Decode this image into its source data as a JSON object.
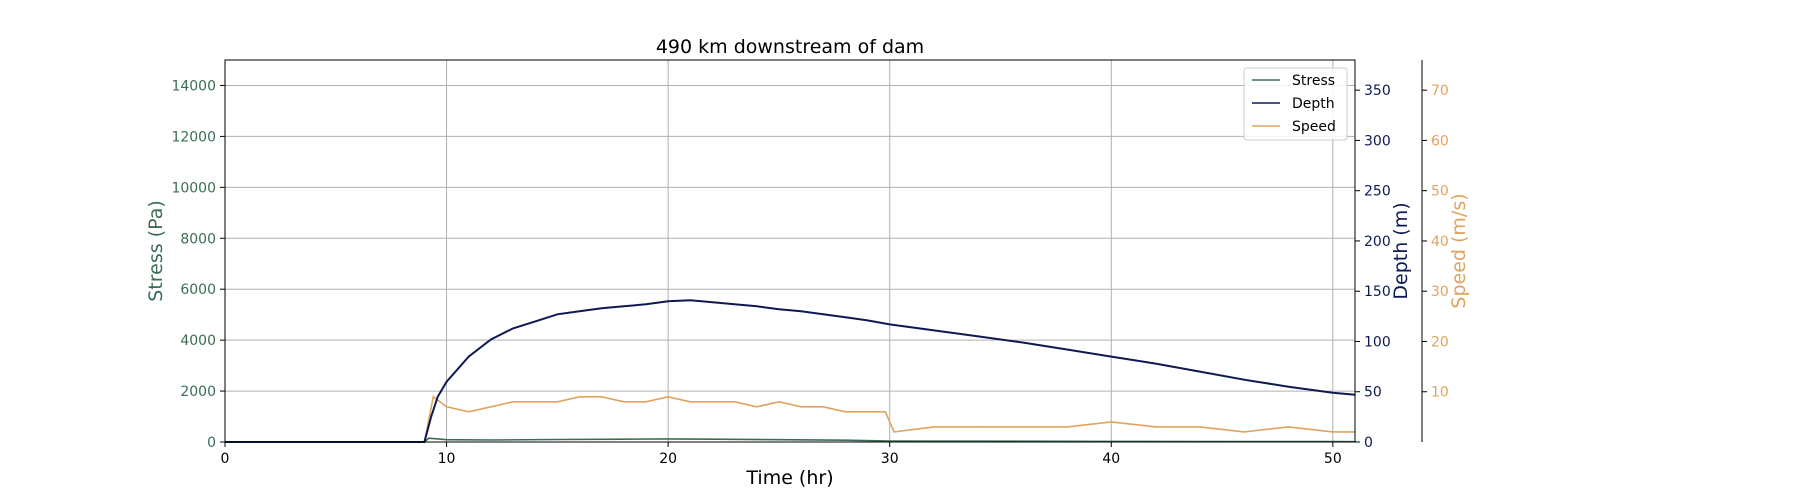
{
  "chart_data": {
    "type": "line",
    "title": "490 km downstream of dam",
    "xlabel": "Time (hr)",
    "xlim": [
      0,
      51
    ],
    "xticks": [
      0,
      10,
      20,
      30,
      40,
      50
    ],
    "grid": true,
    "legend_position": "top-right",
    "colors": {
      "stress": "#3a6e52",
      "depth": "#0d1a52",
      "speed": "#e0a35f"
    },
    "axes": {
      "stress": {
        "label": "Stress (Pa)",
        "ylim": [
          0,
          15000
        ],
        "ticks": [
          0,
          2000,
          4000,
          6000,
          8000,
          10000,
          12000,
          14000
        ],
        "side": "left"
      },
      "depth": {
        "label": "Depth (m)",
        "ylim": [
          0,
          380
        ],
        "ticks": [
          0,
          50,
          100,
          150,
          200,
          250,
          300,
          350
        ],
        "side": "right"
      },
      "speed": {
        "label": "Speed (m/s)",
        "ylim": [
          0,
          76
        ],
        "ticks": [
          10,
          20,
          30,
          40,
          50,
          60,
          70
        ],
        "side": "right-offset"
      }
    },
    "series": [
      {
        "name": "Stress",
        "axis": "stress",
        "x": [
          0,
          9.0,
          9.2,
          10,
          12,
          15,
          18,
          20,
          22,
          25,
          28,
          30,
          35,
          40,
          45,
          50,
          51
        ],
        "y": [
          0,
          0,
          150,
          90,
          80,
          100,
          110,
          120,
          110,
          90,
          70,
          40,
          30,
          25,
          20,
          15,
          10
        ]
      },
      {
        "name": "Depth",
        "axis": "depth",
        "x": [
          0,
          9.0,
          9.3,
          9.6,
          10,
          11,
          12,
          13,
          14,
          15,
          16,
          17,
          18,
          19,
          20,
          21,
          22,
          23,
          24,
          25,
          26,
          27,
          28,
          29,
          30,
          32,
          34,
          36,
          38,
          40,
          42,
          44,
          46,
          48,
          50,
          51
        ],
        "y": [
          0,
          0,
          25,
          45,
          60,
          85,
          102,
          113,
          120,
          127,
          130,
          133,
          135,
          137,
          140,
          141,
          139,
          137,
          135,
          132,
          130,
          127,
          124,
          121,
          117,
          111,
          105,
          99,
          92,
          85,
          78,
          70,
          62,
          55,
          49,
          47
        ]
      },
      {
        "name": "Speed",
        "axis": "speed",
        "x": [
          0,
          9.0,
          9.4,
          10,
          11,
          12,
          13,
          14,
          15,
          16,
          17,
          18,
          19,
          20,
          21,
          22,
          23,
          24,
          25,
          26,
          27,
          28,
          29,
          29.8,
          30.2,
          32,
          34,
          36,
          38,
          40,
          42,
          44,
          46,
          48,
          50,
          51
        ],
        "y": [
          0,
          0,
          9,
          7,
          6,
          7,
          8,
          8,
          8,
          9,
          9,
          8,
          8,
          9,
          8,
          8,
          8,
          7,
          8,
          7,
          7,
          6,
          6,
          6,
          2,
          3,
          3,
          3,
          3,
          4,
          3,
          3,
          2,
          3,
          2,
          2
        ]
      }
    ]
  }
}
